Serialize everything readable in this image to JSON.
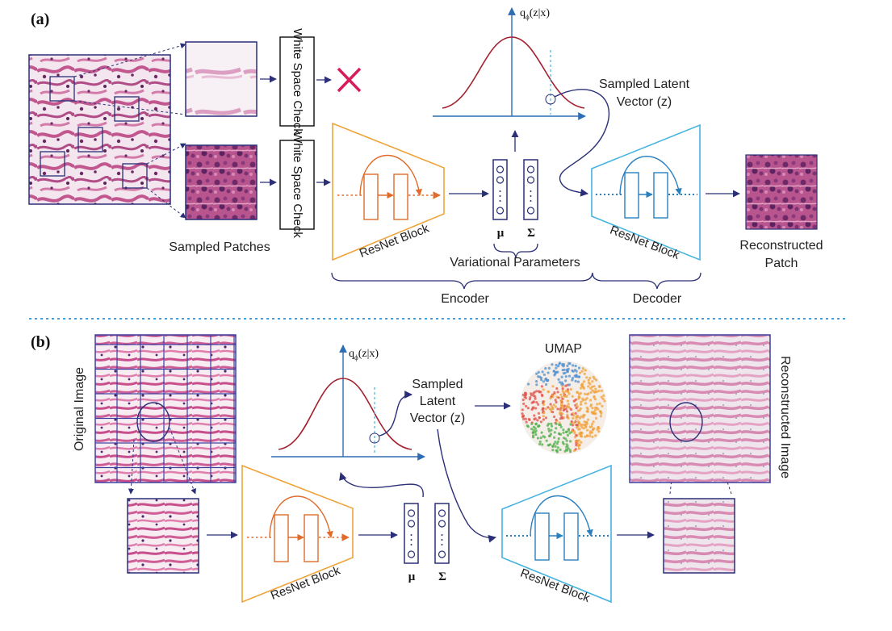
{
  "colors": {
    "navy": "#2b2f78",
    "orange": "#f0a33a",
    "orange_dark": "#e06b2a",
    "cyan": "#45b3e0",
    "cyan_dark": "#2a7fbf",
    "curve": "#a3212f",
    "axis": "#2f6db3",
    "reject": "#d81b5a",
    "divider": "#4a9fd6",
    "tissue_bg": "#f4e8f1",
    "tissue": "#c2578f",
    "tissue_dark": "#6b2a63"
  },
  "panel_a": {
    "label": "(a)",
    "check_top": "White Space Check",
    "check_bottom": "White Space Check",
    "reject_icon": "x-mark-icon",
    "sampled_patches": "Sampled Patches",
    "encoder_block": "ResNet Block",
    "decoder_block": "ResNet Block",
    "mu": "μ",
    "sigma": "Σ",
    "variational_parameters": "Variational Parameters",
    "encoder": "Encoder",
    "decoder": "Decoder",
    "latent_line1": "Sampled Latent",
    "latent_line2": "Vector (z)",
    "reconstructed_line1": "Reconstructed",
    "reconstructed_line2": "Patch",
    "q_label": "q",
    "q_sub": "ϕ",
    "q_arg": "(z|x)"
  },
  "panel_b": {
    "label": "(b)",
    "original_image": "Original Image",
    "reconstructed_image": "Reconstructed Image",
    "umap": "UMAP",
    "latent_line1": "Sampled",
    "latent_line2": "Latent",
    "latent_line3": "Vector (z)",
    "encoder_block": "ResNet Block",
    "decoder_block": "ResNet Block",
    "mu": "μ",
    "sigma": "Σ",
    "q_label": "q",
    "q_sub": "ϕ",
    "q_arg": "(z|x)"
  }
}
